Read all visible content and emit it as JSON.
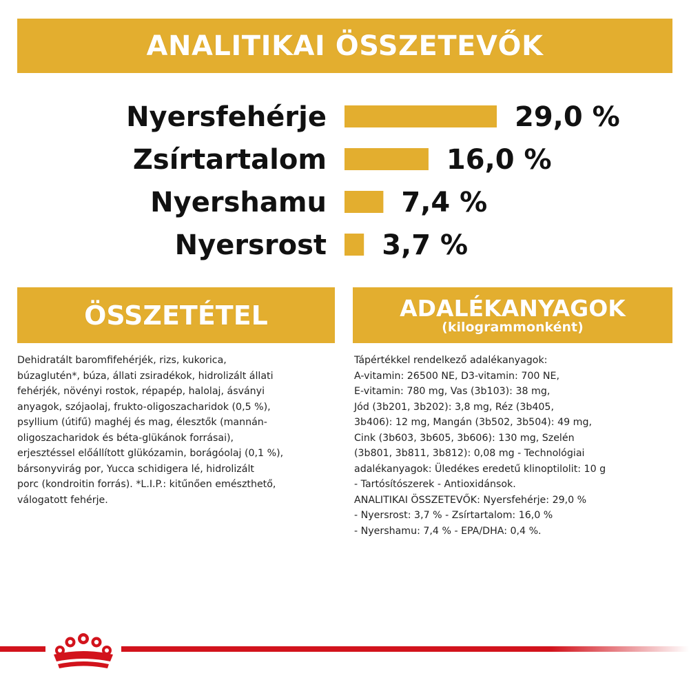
{
  "headers": {
    "top": "ANALITIKAI ÖSSZETEVŐK",
    "left": "ÖSSZETÉTEL",
    "right_main": "ADALÉKANYAGOK",
    "right_sub": "(kilogrammonként)"
  },
  "chart_data": {
    "type": "bar",
    "orientation": "horizontal",
    "categories": [
      "Nyersfehérje",
      "Zsírtartalom",
      "Nyershamu",
      "Nyersrost"
    ],
    "values": [
      29.0,
      16.0,
      7.4,
      3.7
    ],
    "value_labels": [
      "29,0 %",
      "16,0 %",
      "7,4 %",
      "3,7 %"
    ],
    "unit": "%",
    "title": "",
    "xlabel": "",
    "ylabel": "",
    "grid": false,
    "colors": {
      "bar": "#e3ae2f"
    }
  },
  "composition_text": "Dehidratált baromfifehérjék, rizs, kukorica,\nbúzaglutén*, búza, állati zsiradékok, hidrolizált állati\nfehérjék, növényi rostok, répapép, halolaj, ásványi\nanyagok, szójaolaj, frukto-oligoszacharidok (0,5 %),\npsyllium (útifű) maghéj és mag, élesztők (mannán-\noligoszacharidok és béta-glükánok forrásai),\nerjesztéssel előállított glükózamin, borágóolaj (0,1 %),\nbársonyvirág por, Yucca schidigera lé, hidrolizált\nporc (kondroitin forrás). *L.I.P.: kitűnően emészthető,\nválogatott fehérje.",
  "additives_text": "Tápértékkel rendelkező adalékanyagok:\nA-vitamin: 26500 NE, D3-vitamin: 700 NE,\nE-vitamin: 780 mg, Vas (3b103): 38 mg,\nJód (3b201, 3b202): 3,8 mg, Réz (3b405,\n3b406): 12 mg, Mangán (3b502, 3b504): 49 mg,\nCink (3b603, 3b605, 3b606): 130 mg, Szelén\n(3b801, 3b811, 3b812): 0,08 mg - Technológiai\nadalékanyagok: Üledékes eredetű klinoptilolit: 10 g\n- Tartósítószerek - Antioxidánsok.\nANALITIKAI ÖSSZETEVŐK: Nyersfehérje: 29,0 %\n- Nyersrost: 3,7 % - Zsírtartalom: 16,0 %\n- Nyershamu: 7,4 % - EPA/DHA: 0,4 %.",
  "colors": {
    "accent": "#e3ae2f",
    "brand_red": "#d2131c"
  },
  "logo": {
    "icon": "royal-canin-crown-icon"
  }
}
